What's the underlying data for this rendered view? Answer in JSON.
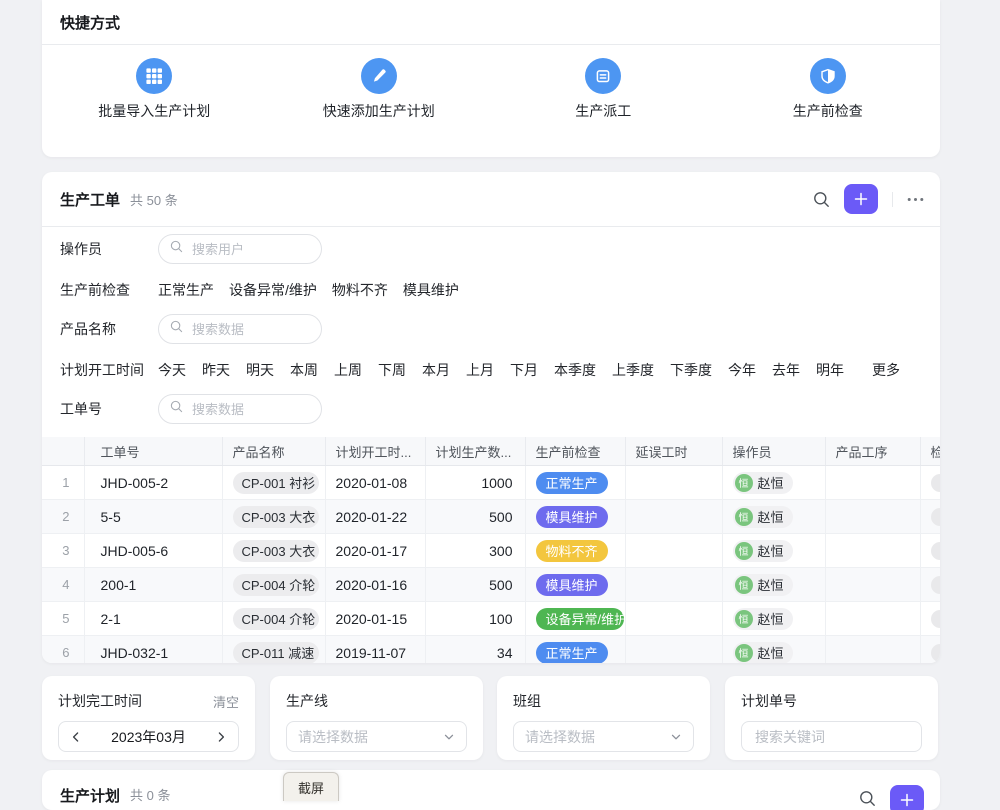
{
  "colors": {
    "accent_purple": "#6b5af7",
    "icon_blue": "#4d96f2",
    "avatar_green": "#7ac57e",
    "status": {
      "blue": "#4e8cf0",
      "purple": "#6e6bee",
      "yellow": "#f3c63e",
      "green": "#4eb652"
    }
  },
  "icons": {
    "shortcut_import": "grid-icon",
    "shortcut_add": "pencil-icon",
    "shortcut_dispatch": "calendar-icon",
    "shortcut_check": "shield-icon",
    "toolbar_search": "search-icon",
    "toolbar_add": "plus-icon",
    "toolbar_more": "ellipsis-icon",
    "input_search": "search-icon",
    "select_chevron": "chevron-down-icon",
    "date_prev": "chevron-left-icon",
    "date_next": "chevron-right-icon"
  },
  "shortcuts": {
    "title": "快捷方式",
    "items": [
      {
        "label": "批量导入生产计划",
        "icon": "grid-icon"
      },
      {
        "label": "快速添加生产计划",
        "icon": "pencil-icon"
      },
      {
        "label": "生产派工",
        "icon": "calendar-icon"
      },
      {
        "label": "生产前检查",
        "icon": "shield-icon"
      }
    ]
  },
  "work_orders": {
    "title": "生产工单",
    "count_text": "共 50 条",
    "filters": [
      {
        "label": "操作员",
        "placeholder": "搜索用户"
      },
      {
        "label": "生产前检查",
        "options": [
          "正常生产",
          "设备异常/维护",
          "物料不齐",
          "模具维护"
        ]
      },
      {
        "label": "产品名称",
        "placeholder": "搜索数据"
      },
      {
        "label": "计划开工时间",
        "options": [
          "今天",
          "昨天",
          "明天",
          "本周",
          "上周",
          "下周",
          "本月",
          "上月",
          "下月",
          "本季度",
          "上季度",
          "下季度",
          "今年",
          "去年",
          "明年"
        ],
        "more_label": "更多"
      },
      {
        "label": "工单号",
        "placeholder": "搜索数据"
      }
    ],
    "table": {
      "headers": [
        "",
        "工单号",
        "产品名称",
        "计划开工时...",
        "计划生产数...",
        "生产前检查",
        "延误工时",
        "操作员",
        "产品工序",
        "检"
      ],
      "rows": [
        {
          "num": "1",
          "order": "JHD-005-2",
          "product": "CP-001 衬衫",
          "date": "2020-01-08",
          "qty": "1000",
          "status": "正常生产",
          "status_color": "blue",
          "delay": "",
          "operator": "赵恒",
          "avatar": "恒"
        },
        {
          "num": "2",
          "order": "5-5",
          "product": "CP-003 大衣",
          "date": "2020-01-22",
          "qty": "500",
          "status": "模具维护",
          "status_color": "purple",
          "delay": "",
          "operator": "赵恒",
          "avatar": "恒"
        },
        {
          "num": "3",
          "order": "JHD-005-6",
          "product": "CP-003 大衣",
          "date": "2020-01-17",
          "qty": "300",
          "status": "物料不齐",
          "status_color": "yellow",
          "delay": "",
          "operator": "赵恒",
          "avatar": "恒"
        },
        {
          "num": "4",
          "order": "200-1",
          "product": "CP-004 介轮",
          "date": "2020-01-16",
          "qty": "500",
          "status": "模具维护",
          "status_color": "purple",
          "delay": "",
          "operator": "赵恒",
          "avatar": "恒"
        },
        {
          "num": "5",
          "order": "2-1",
          "product": "CP-004 介轮",
          "date": "2020-01-15",
          "qty": "100",
          "status": "设备异常/维护",
          "status_color": "green",
          "delay": "",
          "operator": "赵恒",
          "avatar": "恒"
        },
        {
          "num": "6",
          "order": "JHD-032-1",
          "product": "CP-011 减速",
          "date": "2019-11-07",
          "qty": "34",
          "status": "正常生产",
          "status_color": "blue",
          "delay": "",
          "operator": "赵恒",
          "avatar": "恒"
        }
      ]
    }
  },
  "bottom_filters": {
    "plan_finish": {
      "label": "计划完工时间",
      "clear_label": "清空",
      "value": "2023年03月"
    },
    "production_line": {
      "label": "生产线",
      "placeholder": "请选择数据"
    },
    "team": {
      "label": "班组",
      "placeholder": "请选择数据"
    },
    "plan_number": {
      "label": "计划单号",
      "placeholder": "搜索关键词"
    }
  },
  "plans": {
    "title": "生产计划",
    "count_text": "共 0 条"
  },
  "screenshot_overlay": {
    "label": "截屏"
  }
}
